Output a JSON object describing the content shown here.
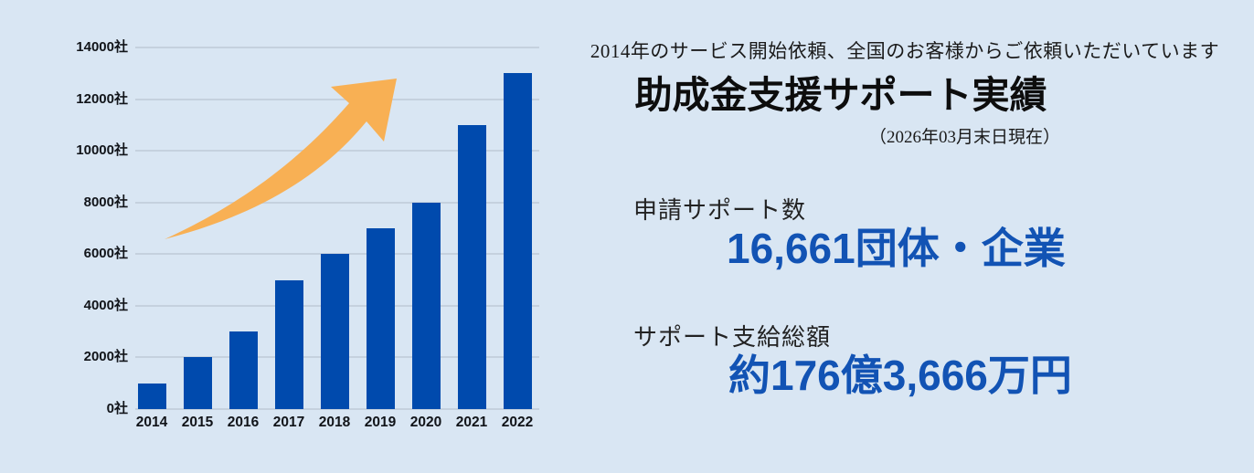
{
  "page": {
    "background_color": "#d9e6f3"
  },
  "chart_data": {
    "type": "bar",
    "title": "",
    "xlabel": "",
    "ylabel": "",
    "unit": "社",
    "categories": [
      "2014",
      "2015",
      "2016",
      "2017",
      "2018",
      "2019",
      "2020",
      "2021",
      "2022"
    ],
    "values": [
      1000,
      2000,
      3000,
      5000,
      6000,
      7000,
      8000,
      11000,
      13000
    ],
    "ylim": [
      0,
      14000
    ],
    "y_tick_values": [
      0,
      2000,
      4000,
      6000,
      8000,
      10000,
      12000,
      14000
    ],
    "y_tick_labels": [
      "0社",
      "2000社",
      "4000社",
      "6000社",
      "8000社",
      "10000社",
      "12000社",
      "14000社"
    ],
    "grid": true,
    "legend": false,
    "bar_color": "#004aad",
    "gridline_color": "#c5d1de",
    "annotations": [
      "orange upward growth arrow overlay"
    ],
    "arrow_color": "#f8b054"
  },
  "stats": {
    "subtitle": "2014年のサービス開始依頼、全国のお客様からご依頼いただいています",
    "title": "助成金支援サポート実績",
    "as_of": "（2026年03月末日現在）",
    "metrics": [
      {
        "label": "申請サポート数",
        "value": "16,661団体・企業"
      },
      {
        "label": "サポート支給総額",
        "value": "約176億3,666万円"
      }
    ],
    "value_color": "#1253b4"
  }
}
